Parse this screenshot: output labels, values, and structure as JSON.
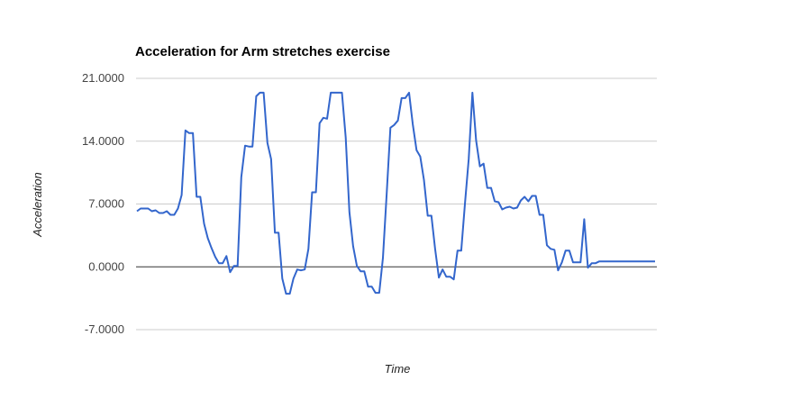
{
  "chart_data": {
    "type": "line",
    "title": "Acceleration for Arm stretches exercise",
    "xlabel": "Time",
    "ylabel": "Acceleration",
    "ylim": [
      -7,
      21
    ],
    "yticks": [
      21,
      14,
      7,
      0,
      -7
    ],
    "ytick_labels": [
      "21.0000",
      "14.0000",
      "7.0000",
      "0.0000",
      "-7.0000"
    ],
    "grid": true,
    "legend": "none",
    "colors": {
      "line": "#3366cc",
      "grid": "#cccccc",
      "zero_line": "#333333"
    },
    "series": [
      {
        "values": [
          6.2,
          6.5,
          6.5,
          6.5,
          6.2,
          6.3,
          6.0,
          6.0,
          6.2,
          5.8,
          5.8,
          6.5,
          8.0,
          15.2,
          14.9,
          14.9,
          7.8,
          7.8,
          4.8,
          3.2,
          2.1,
          1.1,
          0.4,
          0.4,
          1.2,
          -0.6,
          0.1,
          0.1,
          10.0,
          13.5,
          13.4,
          13.4,
          19.0,
          19.4,
          19.4,
          13.8,
          12.0,
          3.8,
          3.8,
          -1.3,
          -3.0,
          -3.0,
          -1.3,
          -0.3,
          -0.4,
          -0.3,
          2.0,
          8.3,
          8.3,
          16.0,
          16.6,
          16.5,
          19.4,
          19.4,
          19.4,
          19.4,
          14.4,
          6.1,
          2.3,
          0.1,
          -0.5,
          -0.5,
          -2.2,
          -2.2,
          -2.9,
          -2.9,
          1.0,
          8.2,
          15.5,
          15.8,
          16.3,
          18.8,
          18.8,
          19.4,
          15.9,
          13.0,
          12.3,
          9.7,
          5.7,
          5.7,
          2.0,
          -1.2,
          -0.3,
          -1.1,
          -1.1,
          -1.4,
          1.8,
          1.8,
          7.0,
          12.0,
          19.4,
          14.1,
          11.2,
          11.5,
          8.8,
          8.8,
          7.3,
          7.2,
          6.4,
          6.6,
          6.7,
          6.5,
          6.6,
          7.4,
          7.8,
          7.3,
          7.9,
          7.9,
          5.8,
          5.8,
          2.4,
          2.0,
          1.9,
          -0.4,
          0.5,
          1.8,
          1.8,
          0.5,
          0.5,
          0.5,
          5.3,
          -0.1,
          0.4,
          0.4,
          0.6,
          0.6,
          0.6,
          0.6,
          0.6,
          0.6,
          0.6,
          0.6,
          0.6,
          0.6,
          0.6,
          0.6,
          0.6,
          0.6,
          0.6,
          0.6
        ]
      }
    ]
  }
}
